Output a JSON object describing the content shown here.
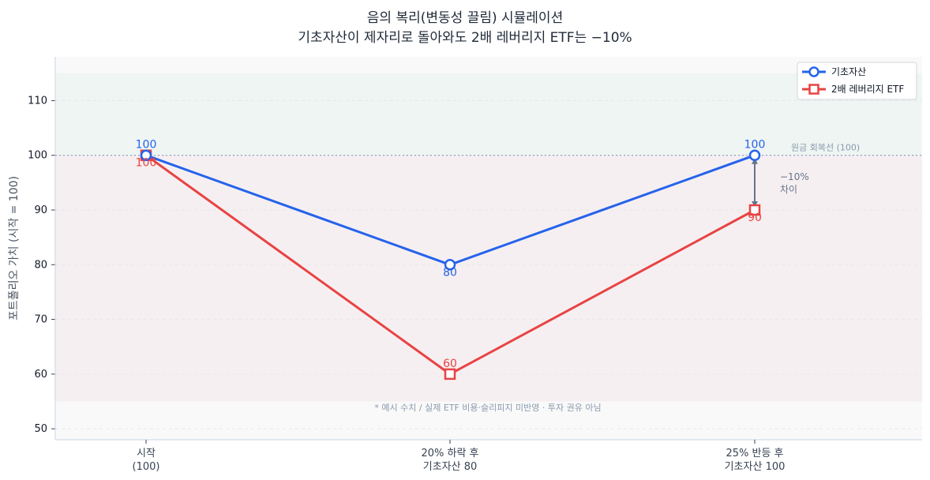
{
  "title_line1": "음의 복리(변동성 끌림) 시뮬레이션",
  "title_line2": "기초자산이 제자리로 돌아와도 2배 레버리지 ETF는 −10%",
  "colors": {
    "base": "#2563eb",
    "lev": "#e84343",
    "gain_band": "#eef5f3",
    "loss_band": "#f6eff1",
    "plot_bg": "#f9f9fa",
    "diff_arrow": "#64748b"
  },
  "chart_data": {
    "type": "line",
    "categories": [
      "시작\n(100)",
      "20% 하락 후\n기초자산 80",
      "25% 반등 후\n기초자산 100"
    ],
    "series": [
      {
        "name": "기초자산",
        "values": [
          100,
          80,
          100
        ],
        "marker": "circle"
      },
      {
        "name": "2배 레버리지 ETF",
        "values": [
          100,
          60,
          90
        ],
        "marker": "square"
      }
    ],
    "ylabel": "포트폴리오 가치 (시작 = 100)",
    "xlabel": "",
    "ylim": [
      48,
      118
    ],
    "yticks": [
      50,
      60,
      70,
      80,
      90,
      100,
      110
    ],
    "grid": true,
    "legend": "top-right",
    "reference_line": {
      "value": 100,
      "label": "원금 회복선 (100)"
    },
    "bands": [
      {
        "from": 100,
        "to": 115,
        "kind": "gain"
      },
      {
        "from": 55,
        "to": 100,
        "kind": "loss"
      }
    ],
    "difference_annotation": {
      "line1": "−10%",
      "line2": "차이",
      "from": 100,
      "to": 90,
      "category_index": 2
    },
    "footnote": "* 예시 수치 / 실제 ETF 비용·슬리피지 미반영 · 투자 권유 아님"
  }
}
